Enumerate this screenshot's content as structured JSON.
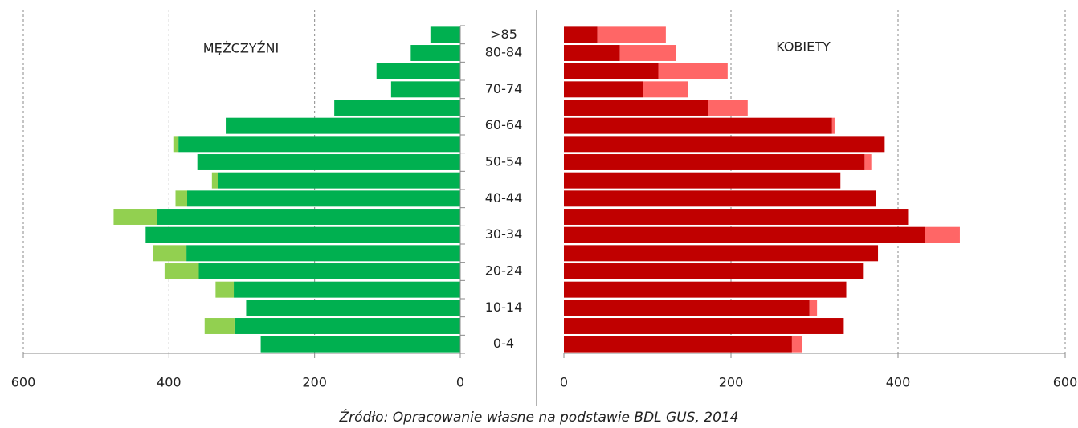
{
  "chart_data": {
    "type": "pyramid",
    "categories": [
      "0-4",
      null,
      "10-14",
      null,
      "20-24",
      null,
      "30-34",
      null,
      "40-44",
      null,
      "50-54",
      null,
      "60-64",
      null,
      "70-74",
      null,
      "80-84",
      ">85"
    ],
    "source": "Źródło: Opracowanie własne na podstawie BDL GUS, 2014",
    "grid": true,
    "left": {
      "title": "MĘŻCZYŹNI",
      "reverse": true,
      "xlim": [
        0,
        600
      ],
      "xticks": [
        0,
        200,
        400,
        600
      ],
      "series": [
        {
          "color": "#00b050",
          "values": [
            274,
            310,
            294,
            311,
            359,
            376,
            432,
            416,
            375,
            333,
            361,
            387,
            322,
            173,
            95,
            115,
            68,
            41
          ]
        },
        {
          "color": "#92d050",
          "values": [
            0,
            41,
            0,
            25,
            47,
            46,
            0,
            60,
            16,
            8,
            0,
            7,
            0,
            0,
            0,
            0,
            0,
            0
          ]
        }
      ]
    },
    "right": {
      "title": "KOBIETY",
      "reverse": false,
      "xlim": [
        0,
        600
      ],
      "xticks": [
        0,
        200,
        400,
        600
      ],
      "series": [
        {
          "color": "#c00000",
          "values": [
            273,
            335,
            294,
            338,
            358,
            376,
            432,
            412,
            374,
            331,
            360,
            384,
            321,
            173,
            95,
            113,
            67,
            40
          ]
        },
        {
          "color": "#ff6666",
          "values": [
            12,
            0,
            9,
            0,
            0,
            0,
            42,
            0,
            0,
            0,
            8,
            0,
            3,
            47,
            54,
            83,
            67,
            82
          ]
        }
      ]
    }
  }
}
